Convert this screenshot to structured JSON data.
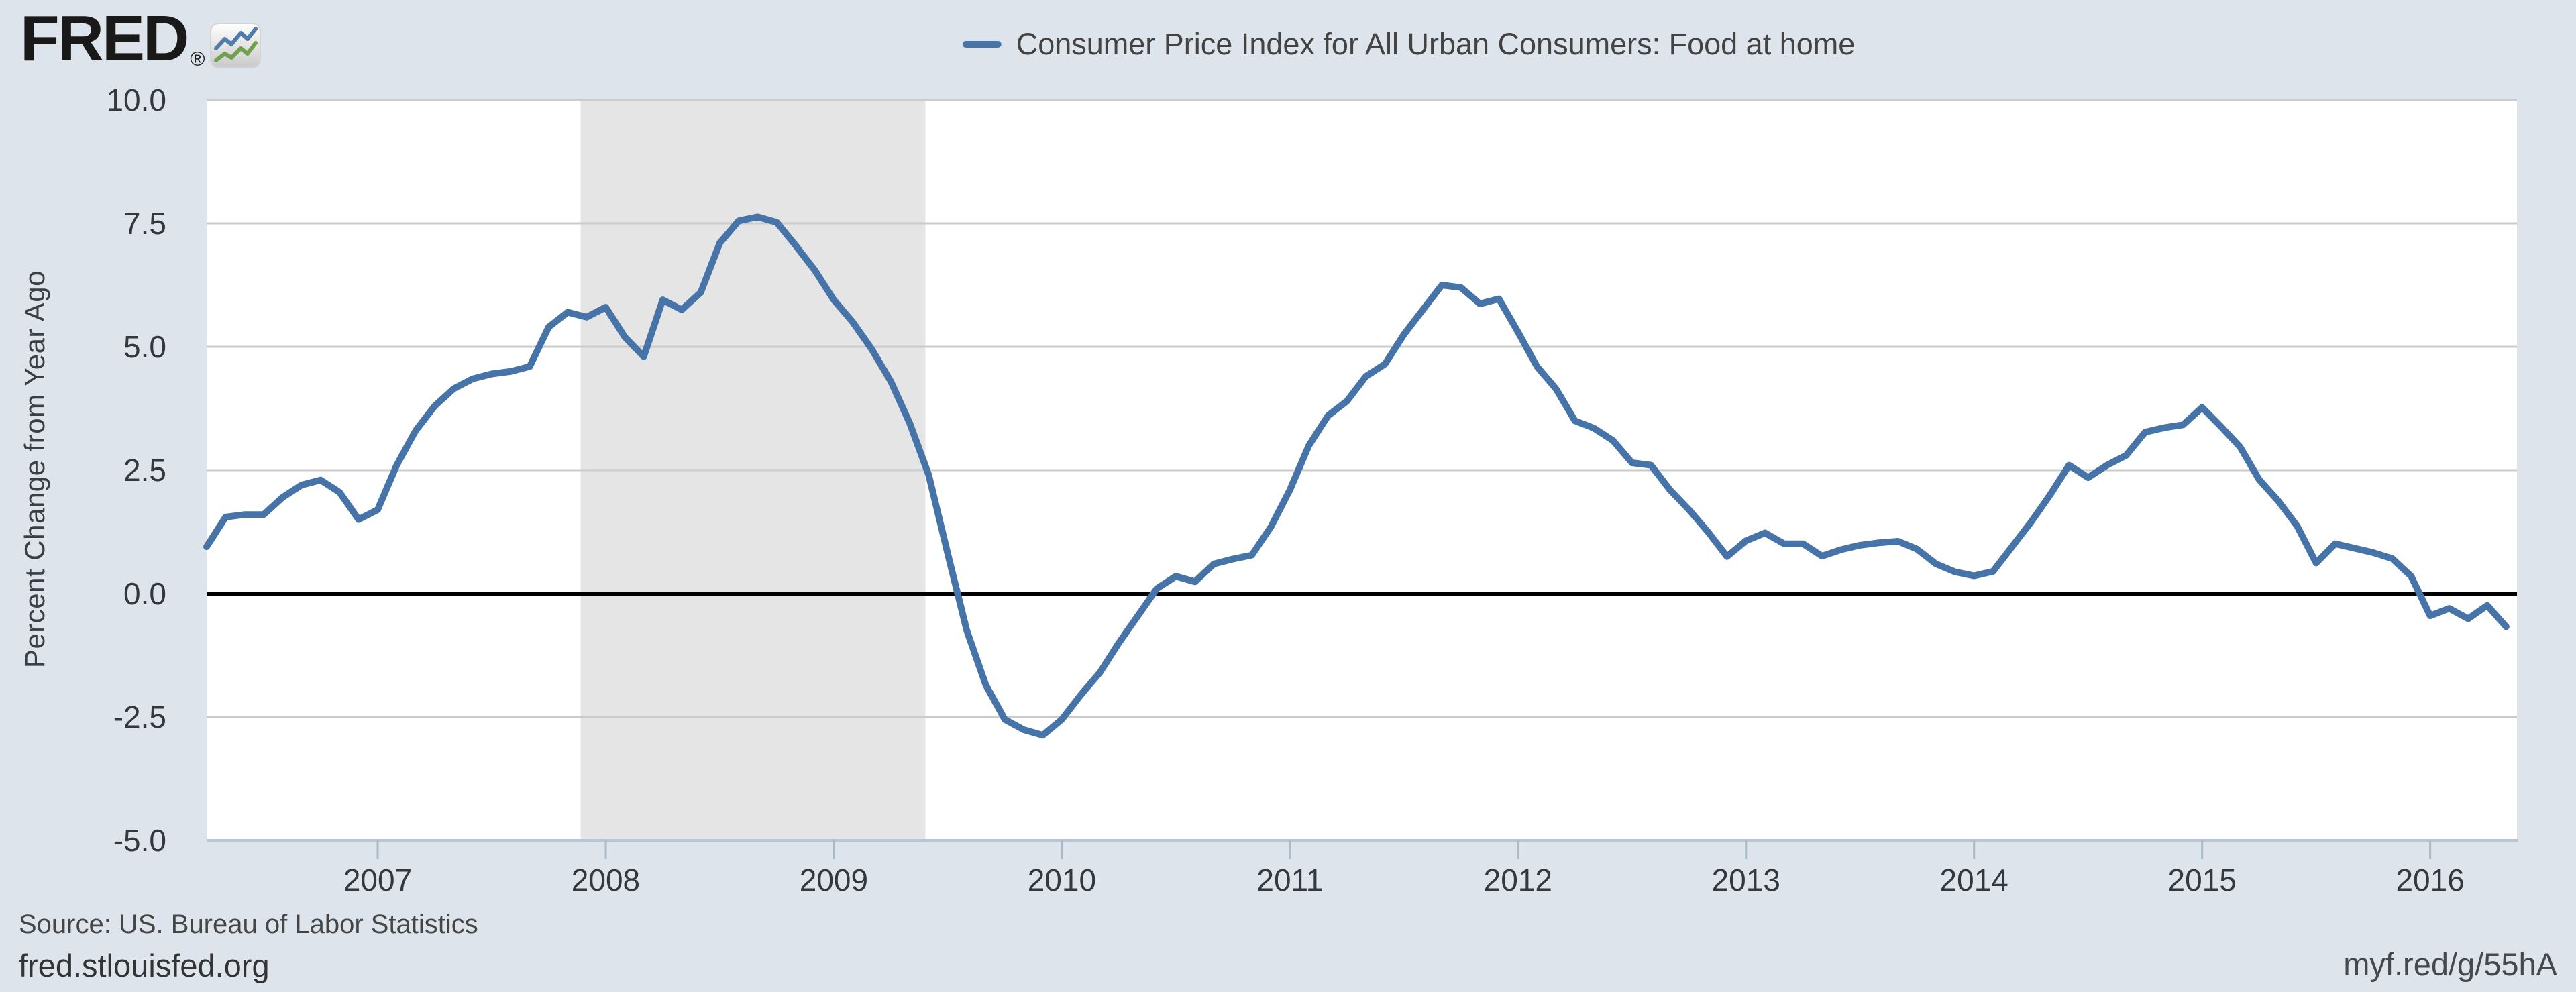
{
  "header": {
    "logo_text": "FRED",
    "registered_mark": "®"
  },
  "legend": {
    "series_label": "Consumer Price Index for All Urban Consumers: Food at home",
    "swatch_color": "#4673a8"
  },
  "footer": {
    "source": "Source: US. Bureau of Labor Statistics",
    "site": "fred.stlouisfed.org",
    "short_url": "myf.red/g/55hA"
  },
  "colors": {
    "page_background": "#dde4ec",
    "plot_background": "#ffffff",
    "recession_band": "#e5e5e5",
    "gridline": "#cbcbcb",
    "zero_line": "#000000",
    "axis_border": "#b9c5d2",
    "tick_mark": "#a9bac9",
    "line": "#4673a8",
    "logo_blue": "#4f7ca9",
    "logo_green": "#71a14f"
  },
  "chart_data": {
    "type": "line",
    "title": "Consumer Price Index for All Urban Consumers: Food at home",
    "ylabel": "Percent Change from Year Ago",
    "frequency": "monthly",
    "x_start": "2006-04",
    "x_end": "2016-05",
    "ylim": [
      -5.0,
      10.0
    ],
    "yticks": [
      10.0,
      7.5,
      5.0,
      2.5,
      0.0,
      -2.5,
      -5.0
    ],
    "xticks": [
      2007,
      2008,
      2009,
      2010,
      2011,
      2012,
      2013,
      2014,
      2015,
      2016
    ],
    "grid": true,
    "legend_position": "top-center",
    "recession_band": {
      "start": "2007-12",
      "end": "2009-06"
    },
    "values": [
      0.95,
      1.55,
      1.6,
      1.6,
      1.95,
      2.2,
      2.3,
      2.05,
      1.5,
      1.7,
      2.6,
      3.3,
      3.8,
      4.15,
      4.35,
      4.45,
      4.5,
      4.6,
      5.4,
      5.7,
      5.6,
      5.8,
      5.2,
      4.8,
      5.95,
      5.75,
      6.1,
      7.1,
      7.55,
      7.63,
      7.52,
      7.05,
      6.55,
      5.95,
      5.5,
      4.95,
      4.3,
      3.45,
      2.4,
      0.8,
      -0.75,
      -1.85,
      -2.55,
      -2.76,
      -2.87,
      -2.55,
      -2.05,
      -1.6,
      -1.0,
      -0.45,
      0.1,
      0.35,
      0.24,
      0.6,
      0.7,
      0.78,
      1.35,
      2.1,
      3.0,
      3.6,
      3.9,
      4.4,
      4.65,
      5.25,
      5.75,
      6.25,
      6.2,
      5.87,
      5.97,
      5.3,
      4.6,
      4.15,
      3.5,
      3.35,
      3.1,
      2.65,
      2.6,
      2.1,
      1.7,
      1.25,
      0.75,
      1.07,
      1.23,
      1.01,
      1.01,
      0.76,
      0.89,
      0.98,
      1.03,
      1.06,
      0.9,
      0.6,
      0.44,
      0.36,
      0.45,
      0.95,
      1.45,
      2.0,
      2.6,
      2.35,
      2.6,
      2.8,
      3.27,
      3.36,
      3.42,
      3.77,
      3.38,
      2.97,
      2.31,
      1.88,
      1.37,
      0.62,
      1.01,
      0.92,
      0.83,
      0.71,
      0.35,
      -0.45,
      -0.3,
      -0.51,
      -0.24,
      -0.67
    ]
  }
}
